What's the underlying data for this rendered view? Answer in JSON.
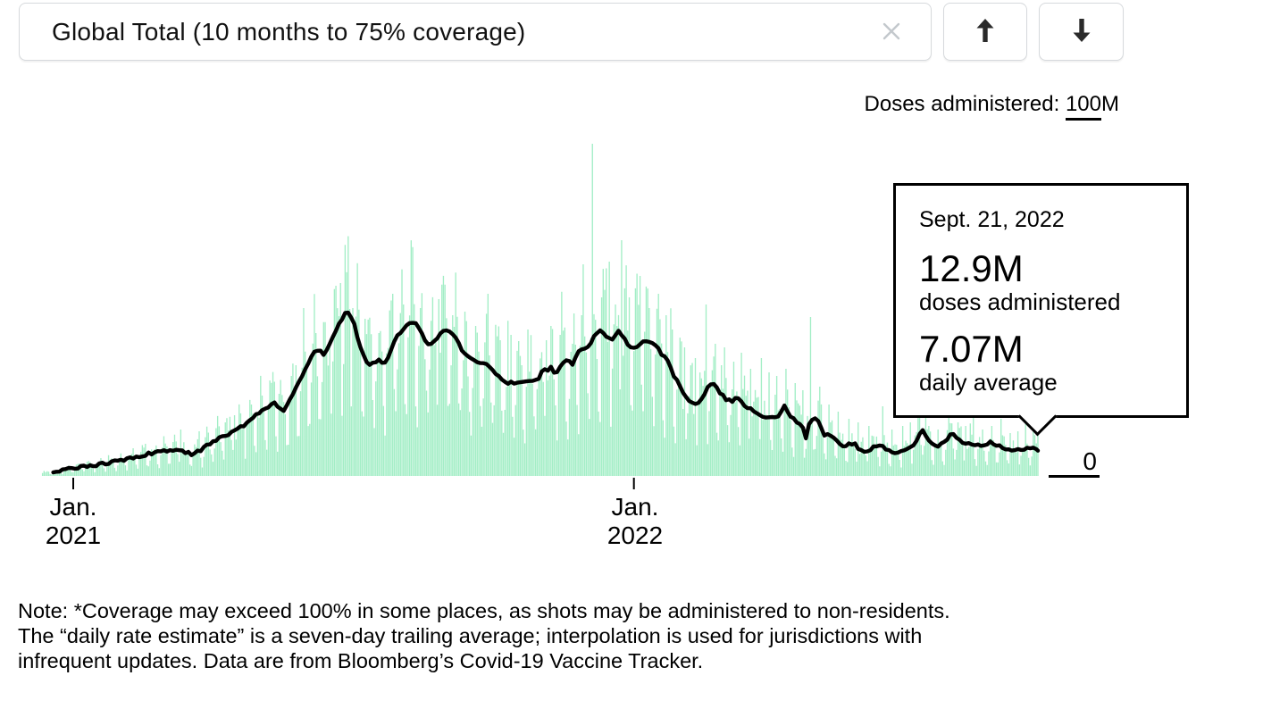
{
  "header": {
    "title": "Global Total (10 months to 75% coverage)"
  },
  "icons": {
    "close": "x-cross",
    "up": "arrow-up",
    "down": "arrow-down"
  },
  "y_axis": {
    "top_label_prefix": "Doses administered: ",
    "top_label_value": "100",
    "top_label_suffix": "M",
    "zero_label": "0"
  },
  "x_axis": {
    "ticks": [
      {
        "line1": "Jan.",
        "line2": "2021"
      },
      {
        "line1": "Jan.",
        "line2": "2022"
      }
    ]
  },
  "tooltip": {
    "date": "Sept. 21, 2022",
    "doses_value": "12.9M",
    "doses_label": "doses administered",
    "avg_value": "7.07M",
    "avg_label": "daily average"
  },
  "note_lines": [
    "Note: *Coverage may exceed 100% in some places, as shots may be administered to non-residents.",
    "The “daily rate estimate” is a seven-day trailing average; interpolation is used for jurisdictions with",
    "infrequent updates. Data are from Bloomberg’s Covid-19 Vaccine Tracker."
  ],
  "colors": {
    "bar": "#a3eec6",
    "line": "#000000",
    "border": "#d6d9dc",
    "close_icon": "#c3c8cc",
    "arrow_icon": "#2a2a2a"
  },
  "chart_data": {
    "type": "bar",
    "subtype": "daily bars with 7-day trailing average line overlay",
    "title": "Global Total (10 months to 75% coverage)",
    "bar_series_name": "doses administered (daily, millions)",
    "line_series_name": "daily average (7-day trailing, millions)",
    "x_unit": "days since Jan. 1, 2021",
    "x_range_days": [
      -20,
      628
    ],
    "x_tick_days": [
      0,
      365
    ],
    "ylim_millions": [
      0,
      100
    ],
    "y_reference_labels": {
      "top": "100M",
      "bottom": "0"
    },
    "grid": "off",
    "final_point": {
      "date": "Sept. 21, 2022",
      "doses_administered_millions": 12.9,
      "daily_average_millions": 7.07
    },
    "line_keypoints_day_value": [
      [
        -13,
        1.0
      ],
      [
        0,
        2.2
      ],
      [
        10,
        2.8
      ],
      [
        20,
        3.4
      ],
      [
        35,
        4.8
      ],
      [
        50,
        6.3
      ],
      [
        60,
        7.1
      ],
      [
        65,
        7.3
      ],
      [
        72,
        6.7
      ],
      [
        78,
        6.1
      ],
      [
        84,
        7.5
      ],
      [
        90,
        9.5
      ],
      [
        98,
        11.0
      ],
      [
        105,
        12.4
      ],
      [
        112,
        14.5
      ],
      [
        120,
        17.5
      ],
      [
        126,
        19.0
      ],
      [
        131,
        20.3
      ],
      [
        134,
        19.2
      ],
      [
        137,
        18.4
      ],
      [
        141,
        21.5
      ],
      [
        146,
        25.7
      ],
      [
        151,
        30.0
      ],
      [
        156,
        34.3
      ],
      [
        160,
        35.0
      ],
      [
        164,
        33.9
      ],
      [
        167,
        37.0
      ],
      [
        170,
        40.0
      ],
      [
        172,
        42.0
      ],
      [
        175,
        44.0
      ],
      [
        178,
        46.2
      ],
      [
        181,
        44.0
      ],
      [
        183,
        42.5
      ],
      [
        186,
        37.5
      ],
      [
        190,
        32.5
      ],
      [
        193,
        31.0
      ],
      [
        196,
        31.8
      ],
      [
        199,
        32.3
      ],
      [
        202,
        31.2
      ],
      [
        205,
        33.0
      ],
      [
        208,
        36.6
      ],
      [
        211,
        39.0
      ],
      [
        214,
        40.8
      ],
      [
        218,
        42.9
      ],
      [
        222,
        42.9
      ],
      [
        225,
        41.6
      ],
      [
        228,
        38.5
      ],
      [
        231,
        37.0
      ],
      [
        234,
        37.4
      ],
      [
        237,
        38.3
      ],
      [
        240,
        40.3
      ],
      [
        243,
        40.8
      ],
      [
        246,
        40.5
      ],
      [
        250,
        38.3
      ],
      [
        253,
        35.3
      ],
      [
        256,
        33.3
      ],
      [
        259,
        33.0
      ],
      [
        262,
        32.0
      ],
      [
        265,
        31.5
      ],
      [
        268,
        31.8
      ],
      [
        271,
        30.5
      ],
      [
        275,
        28.8
      ],
      [
        278,
        27.0
      ],
      [
        284,
        26.0
      ],
      [
        290,
        26.3
      ],
      [
        296,
        26.5
      ],
      [
        303,
        27.0
      ],
      [
        306,
        30.3
      ],
      [
        308,
        29.0
      ],
      [
        311,
        30.8
      ],
      [
        314,
        28.3
      ],
      [
        318,
        31.5
      ],
      [
        322,
        32.5
      ],
      [
        325,
        31.3
      ],
      [
        330,
        35.8
      ],
      [
        335,
        35.8
      ],
      [
        340,
        40.0
      ],
      [
        344,
        40.8
      ],
      [
        347,
        39.0
      ],
      [
        350,
        37.8
      ],
      [
        355,
        40.3
      ],
      [
        358,
        39.0
      ],
      [
        362,
        36.3
      ],
      [
        366,
        35.8
      ],
      [
        371,
        37.5
      ],
      [
        376,
        37.5
      ],
      [
        380,
        36.5
      ],
      [
        383,
        34.0
      ],
      [
        387,
        32.5
      ],
      [
        390,
        29.0
      ],
      [
        394,
        25.8
      ],
      [
        398,
        22.5
      ],
      [
        402,
        20.8
      ],
      [
        406,
        20.0
      ],
      [
        410,
        22.5
      ],
      [
        414,
        25.3
      ],
      [
        417,
        26.0
      ],
      [
        421,
        23.3
      ],
      [
        425,
        21.5
      ],
      [
        429,
        20.8
      ],
      [
        432,
        22.0
      ],
      [
        436,
        20.0
      ],
      [
        440,
        19.0
      ],
      [
        444,
        17.8
      ],
      [
        448,
        17.0
      ],
      [
        452,
        16.5
      ],
      [
        456,
        16.3
      ],
      [
        460,
        17.0
      ],
      [
        463,
        19.5
      ],
      [
        467,
        16.5
      ],
      [
        471,
        15.3
      ],
      [
        475,
        13.3
      ],
      [
        477,
        10.8
      ],
      [
        480,
        15.8
      ],
      [
        483,
        16.3
      ],
      [
        486,
        14.5
      ],
      [
        489,
        11.3
      ],
      [
        494,
        11.5
      ],
      [
        497,
        10.3
      ],
      [
        501,
        8.3
      ],
      [
        505,
        9.0
      ],
      [
        509,
        8.8
      ],
      [
        514,
        6.5
      ],
      [
        519,
        7.5
      ],
      [
        524,
        8.8
      ],
      [
        528,
        7.8
      ],
      [
        533,
        6.5
      ],
      [
        538,
        7.0
      ],
      [
        543,
        7.5
      ],
      [
        547,
        8.3
      ],
      [
        551,
        12.0
      ],
      [
        553,
        12.8
      ],
      [
        556,
        10.8
      ],
      [
        560,
        8.8
      ],
      [
        564,
        8.3
      ],
      [
        568,
        10.0
      ],
      [
        571,
        11.5
      ],
      [
        574,
        11.3
      ],
      [
        578,
        9.5
      ],
      [
        582,
        8.8
      ],
      [
        586,
        9.0
      ],
      [
        590,
        8.3
      ],
      [
        594,
        9.0
      ],
      [
        597,
        9.5
      ],
      [
        601,
        8.8
      ],
      [
        605,
        7.8
      ],
      [
        609,
        7.5
      ],
      [
        613,
        7.0
      ],
      [
        617,
        7.5
      ],
      [
        621,
        7.8
      ],
      [
        625,
        8.3
      ],
      [
        628,
        7.07
      ]
    ],
    "bar_spikes_day_value": [
      [
        23,
        5.8
      ],
      [
        47,
        9
      ],
      [
        70,
        13
      ],
      [
        82,
        12.5
      ],
      [
        99,
        15
      ],
      [
        105,
        17
      ],
      [
        111,
        14
      ],
      [
        123,
        22.5
      ],
      [
        134,
        23
      ],
      [
        142,
        28
      ],
      [
        150,
        47
      ],
      [
        158,
        40
      ],
      [
        167,
        38
      ],
      [
        174,
        54
      ],
      [
        182,
        47
      ],
      [
        190,
        44
      ],
      [
        199,
        40
      ],
      [
        208,
        51
      ],
      [
        215,
        48
      ],
      [
        226,
        47
      ],
      [
        238,
        49.5
      ],
      [
        247,
        45
      ],
      [
        255,
        46
      ],
      [
        262,
        42
      ],
      [
        270,
        51
      ],
      [
        278,
        38
      ],
      [
        285,
        39.5
      ],
      [
        296,
        41
      ],
      [
        308,
        38
      ],
      [
        317,
        39.5
      ],
      [
        325,
        37
      ],
      [
        331,
        45
      ],
      [
        338,
        93
      ],
      [
        344,
        50
      ],
      [
        349,
        60
      ],
      [
        353,
        48
      ],
      [
        357,
        66
      ],
      [
        362,
        50
      ],
      [
        369,
        56
      ],
      [
        375,
        47
      ],
      [
        381,
        51
      ],
      [
        386,
        45
      ],
      [
        390,
        41
      ],
      [
        398,
        36
      ],
      [
        405,
        33
      ],
      [
        412,
        48
      ],
      [
        418,
        37
      ],
      [
        424,
        36
      ],
      [
        430,
        32
      ],
      [
        435,
        34.5
      ],
      [
        441,
        30
      ],
      [
        448,
        33
      ],
      [
        453,
        29
      ],
      [
        458,
        28
      ],
      [
        464,
        30
      ],
      [
        470,
        26
      ],
      [
        475,
        24
      ],
      [
        480,
        44.5
      ],
      [
        486,
        25
      ],
      [
        492,
        20
      ],
      [
        498,
        18
      ],
      [
        505,
        16
      ],
      [
        511,
        15
      ],
      [
        518,
        14
      ],
      [
        527,
        19.5
      ],
      [
        533,
        13
      ],
      [
        540,
        14
      ],
      [
        545,
        15
      ],
      [
        551,
        18
      ],
      [
        557,
        14
      ],
      [
        563,
        13
      ],
      [
        570,
        21
      ],
      [
        576,
        15
      ],
      [
        581,
        14
      ],
      [
        586,
        17
      ],
      [
        592,
        13
      ],
      [
        598,
        14
      ],
      [
        604,
        16
      ],
      [
        610,
        12
      ],
      [
        615,
        12.5
      ],
      [
        620,
        14.5
      ],
      [
        625,
        13
      ],
      [
        628,
        12.9
      ]
    ],
    "bar_week_factor": [
      0.4,
      0.85,
      1.15,
      1.3,
      1.22,
      1.02,
      0.55
    ],
    "bar_jitter": [
      0.78,
      0.5
    ]
  }
}
